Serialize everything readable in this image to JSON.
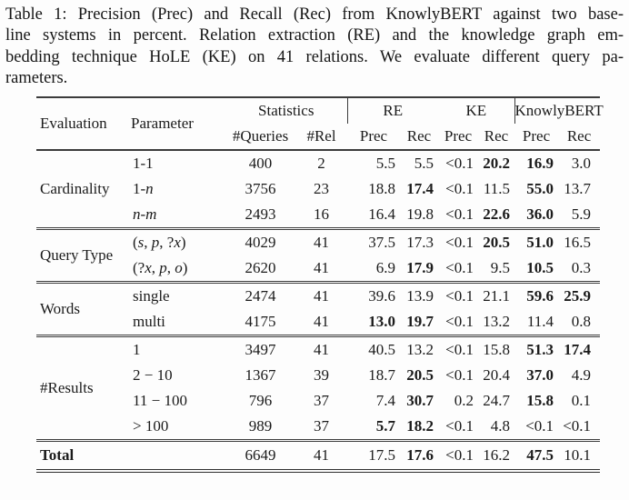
{
  "caption": {
    "lines": [
      "Table 1: Precision (Prec) and Recall (Rec) from KnowlyBERT against two base-",
      "line systems in percent. Relation extraction (RE) and the knowledge graph em-",
      "bedding technique HoLE (KE) on 41 relations. We evaluate different query pa-",
      "rameters."
    ]
  },
  "table": {
    "header": {
      "evaluation": "Evaluation",
      "parameter": "Parameter",
      "groups": [
        {
          "label": "Statistics",
          "sub": [
            "#Queries",
            "#Rel"
          ]
        },
        {
          "label": "RE",
          "sub": [
            "Prec",
            "Rec"
          ]
        },
        {
          "label": "KE",
          "sub": [
            "Prec",
            "Rec"
          ]
        },
        {
          "label": "KnowlyBERT",
          "sub": [
            "Prec",
            "Rec"
          ]
        }
      ]
    },
    "sections": [
      {
        "evaluation": "Cardinality",
        "rows": [
          {
            "parameter": "1-1",
            "param_style": "math",
            "queries": "400",
            "rel": "2",
            "metrics": [
              {
                "v": "5.5"
              },
              {
                "v": "5.5"
              },
              {
                "v": "<0.1"
              },
              {
                "v": "20.2",
                "b": true
              },
              {
                "v": "16.9",
                "b": true
              },
              {
                "v": "3.0"
              }
            ]
          },
          {
            "parameter": "1-n",
            "param_style": "math",
            "queries": "3756",
            "rel": "23",
            "metrics": [
              {
                "v": "18.8"
              },
              {
                "v": "17.4",
                "b": true
              },
              {
                "v": "<0.1"
              },
              {
                "v": "11.5"
              },
              {
                "v": "55.0",
                "b": true
              },
              {
                "v": "13.7"
              }
            ]
          },
          {
            "parameter": "n-m",
            "param_style": "math",
            "queries": "2493",
            "rel": "16",
            "metrics": [
              {
                "v": "16.4"
              },
              {
                "v": "19.8"
              },
              {
                "v": "<0.1"
              },
              {
                "v": "22.6",
                "b": true
              },
              {
                "v": "36.0",
                "b": true
              },
              {
                "v": "5.9"
              }
            ]
          }
        ]
      },
      {
        "evaluation": "Query Type",
        "rows": [
          {
            "parameter": "(s, p, ?x)",
            "param_style": "math",
            "queries": "4029",
            "rel": "41",
            "metrics": [
              {
                "v": "37.5"
              },
              {
                "v": "17.3"
              },
              {
                "v": "<0.1"
              },
              {
                "v": "20.5",
                "b": true
              },
              {
                "v": "51.0",
                "b": true
              },
              {
                "v": "16.5"
              }
            ]
          },
          {
            "parameter": "(?x, p, o)",
            "param_style": "math",
            "queries": "2620",
            "rel": "41",
            "metrics": [
              {
                "v": "6.9"
              },
              {
                "v": "17.9",
                "b": true
              },
              {
                "v": "<0.1"
              },
              {
                "v": "9.5"
              },
              {
                "v": "10.5",
                "b": true
              },
              {
                "v": "0.3"
              }
            ]
          }
        ]
      },
      {
        "evaluation": "Words",
        "rows": [
          {
            "parameter": "single",
            "param_style": "plain",
            "queries": "2474",
            "rel": "41",
            "metrics": [
              {
                "v": "39.6"
              },
              {
                "v": "13.9"
              },
              {
                "v": "<0.1"
              },
              {
                "v": "21.1"
              },
              {
                "v": "59.6",
                "b": true
              },
              {
                "v": "25.9",
                "b": true
              }
            ]
          },
          {
            "parameter": "multi",
            "param_style": "plain",
            "queries": "4175",
            "rel": "41",
            "metrics": [
              {
                "v": "13.0",
                "b": true
              },
              {
                "v": "19.7",
                "b": true
              },
              {
                "v": "<0.1"
              },
              {
                "v": "13.2"
              },
              {
                "v": "11.4"
              },
              {
                "v": "0.8"
              }
            ]
          }
        ]
      },
      {
        "evaluation": "#Results",
        "rows": [
          {
            "parameter": "1",
            "param_style": "math",
            "queries": "3497",
            "rel": "41",
            "metrics": [
              {
                "v": "40.5"
              },
              {
                "v": "13.2"
              },
              {
                "v": "<0.1"
              },
              {
                "v": "15.8"
              },
              {
                "v": "51.3",
                "b": true
              },
              {
                "v": "17.4",
                "b": true
              }
            ]
          },
          {
            "parameter": "2 − 10",
            "param_style": "math",
            "queries": "1367",
            "rel": "39",
            "metrics": [
              {
                "v": "18.7"
              },
              {
                "v": "20.5",
                "b": true
              },
              {
                "v": "<0.1"
              },
              {
                "v": "20.4"
              },
              {
                "v": "37.0",
                "b": true
              },
              {
                "v": "4.9"
              }
            ]
          },
          {
            "parameter": "11 − 100",
            "param_style": "math",
            "queries": "796",
            "rel": "37",
            "metrics": [
              {
                "v": "7.4"
              },
              {
                "v": "30.7",
                "b": true
              },
              {
                "v": "0.2"
              },
              {
                "v": "24.7"
              },
              {
                "v": "15.8",
                "b": true
              },
              {
                "v": "0.1"
              }
            ]
          },
          {
            "parameter": "> 100",
            "param_style": "math",
            "queries": "989",
            "rel": "37",
            "metrics": [
              {
                "v": "5.7",
                "b": true
              },
              {
                "v": "18.2",
                "b": true
              },
              {
                "v": "<0.1"
              },
              {
                "v": "4.8"
              },
              {
                "v": "<0.1"
              },
              {
                "v": "<0.1"
              }
            ]
          }
        ]
      }
    ],
    "total": {
      "label": "Total",
      "queries": "6649",
      "rel": "41",
      "metrics": [
        {
          "v": "17.5"
        },
        {
          "v": "17.6",
          "b": true
        },
        {
          "v": "<0.1"
        },
        {
          "v": "16.2"
        },
        {
          "v": "47.5",
          "b": true
        },
        {
          "v": "10.1"
        }
      ]
    }
  }
}
